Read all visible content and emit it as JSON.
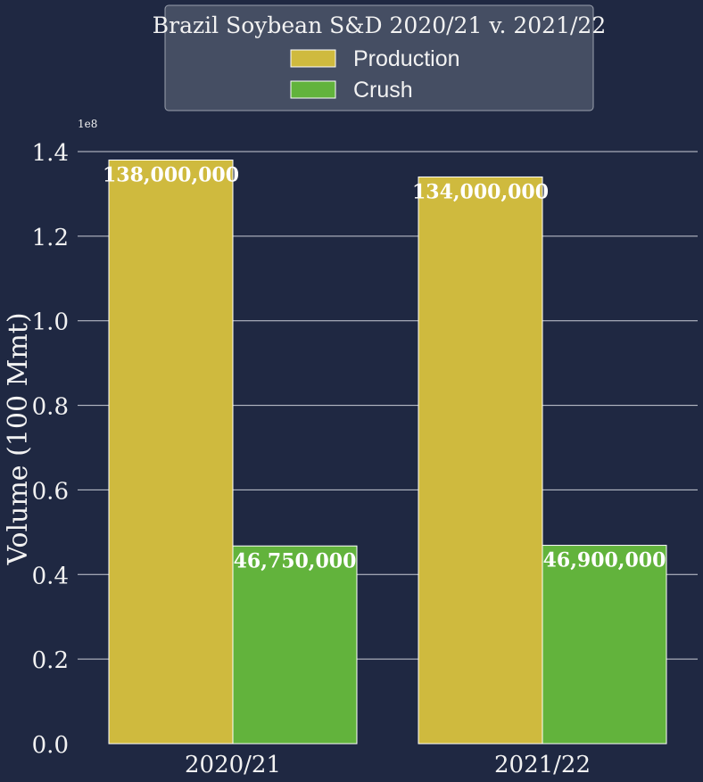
{
  "colors": {
    "background": "#1f2842",
    "grid": "#c9ccd6",
    "text": "#f2f2f2",
    "production": "#cfba3e",
    "crush": "#62b33c",
    "legend_bg": "#454e63",
    "legend_border": "#9aa0ad"
  },
  "chart_data": {
    "type": "bar",
    "title": "Brazil Soybean S&D 2020/21 v. 2021/22",
    "ylabel": "Volume (100 Mmt)",
    "xlabel": "",
    "categories": [
      "2020/21",
      "2021/22"
    ],
    "series": [
      {
        "name": "Production",
        "values": [
          138000000,
          134000000
        ],
        "labels": [
          "138,000,000",
          "134,000,000"
        ],
        "color": "#cfba3e"
      },
      {
        "name": "Crush",
        "values": [
          46750000,
          46900000
        ],
        "labels": [
          "46,750,000",
          "46,900,000"
        ],
        "color": "#62b33c"
      }
    ],
    "ylim": [
      0,
      140000000
    ],
    "yticks": [
      0,
      20000000,
      40000000,
      60000000,
      80000000,
      100000000,
      120000000,
      140000000
    ],
    "ytick_labels": [
      "0.0",
      "0.2",
      "0.4",
      "0.6",
      "0.8",
      "1.0",
      "1.2",
      "1.4"
    ],
    "offset_text": "1e8",
    "grid": true,
    "legend_position": "top-center"
  }
}
